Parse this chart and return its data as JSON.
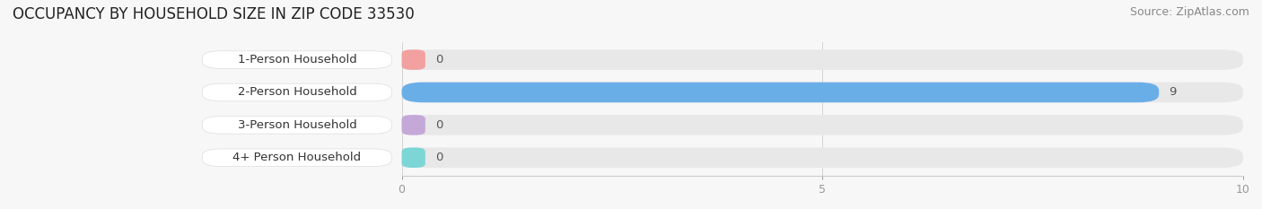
{
  "title": "OCCUPANCY BY HOUSEHOLD SIZE IN ZIP CODE 33530",
  "source": "Source: ZipAtlas.com",
  "categories": [
    "1-Person Household",
    "2-Person Household",
    "3-Person Household",
    "4+ Person Household"
  ],
  "values": [
    0,
    9,
    0,
    0
  ],
  "bar_colors": [
    "#F2A0A0",
    "#6AAEE8",
    "#C4A8D8",
    "#7DD6D6"
  ],
  "xlim": [
    0,
    10
  ],
  "xticks": [
    0,
    5,
    10
  ],
  "background_color": "#f7f7f7",
  "bar_bg_color": "#e8e8e8",
  "title_fontsize": 12,
  "source_fontsize": 9,
  "label_fontsize": 9.5,
  "value_fontsize": 9.5
}
